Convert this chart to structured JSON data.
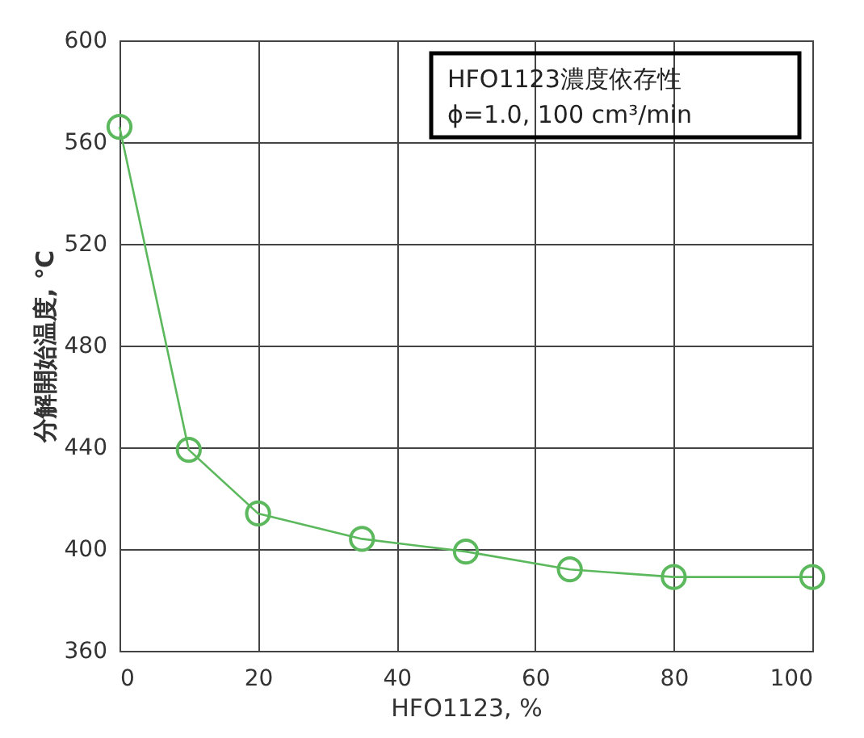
{
  "chart_data": {
    "type": "line",
    "xlabel": "HFO1123, %",
    "ylabel": "分解開始温度, ℃",
    "annotations": [
      "HFO1123濃度依存性",
      "ϕ=1.0, 100 cm³/min"
    ],
    "x": [
      0,
      10,
      20,
      35,
      50,
      65,
      80,
      100
    ],
    "series": [
      {
        "color": "#5cb85c",
        "values": [
          566,
          439,
          414,
          404,
          399,
          392,
          389,
          389
        ]
      }
    ],
    "xlim": [
      0,
      100
    ],
    "xticks": [
      0,
      20,
      40,
      60,
      80,
      100
    ],
    "ylim": [
      360,
      600
    ],
    "yticks": [
      360,
      400,
      440,
      480,
      520,
      560,
      600
    ],
    "grid": true,
    "marker": "circle",
    "line_style": "solid"
  }
}
